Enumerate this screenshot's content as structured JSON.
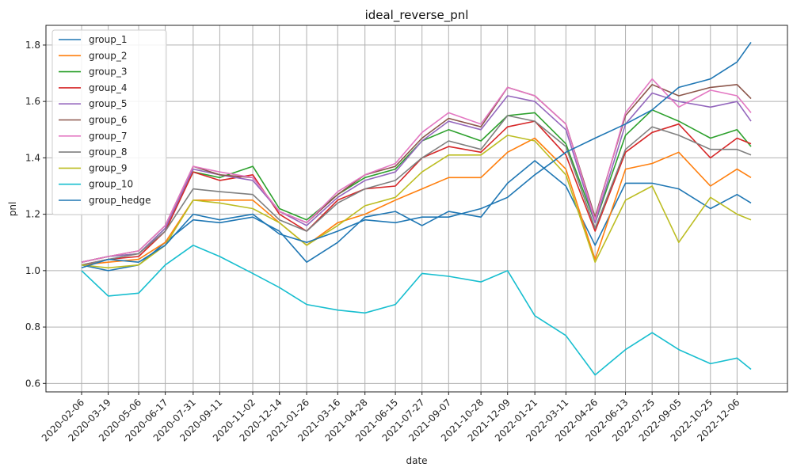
{
  "chart_data": {
    "type": "line",
    "title": "ideal_reverse_pnl",
    "xlabel": "date",
    "ylabel": "pnl",
    "ylim": [
      0.57,
      1.87
    ],
    "yticks": [
      0.6,
      0.8,
      1.0,
      1.2,
      1.4,
      1.6,
      1.8
    ],
    "xticks": [
      "2020-02-06",
      "2020-03-19",
      "2020-05-06",
      "2020-06-17",
      "2020-07-31",
      "2020-09-11",
      "2020-11-02",
      "2020-12-14",
      "2021-01-26",
      "2021-03-16",
      "2021-04-28",
      "2021-06-15",
      "2021-07-27",
      "2021-09-07",
      "2021-10-28",
      "2021-12-09",
      "2022-01-21",
      "2022-03-11",
      "2022-04-26",
      "2022-06-13",
      "2022-07-25",
      "2022-09-05",
      "2022-10-25",
      "2022-12-06"
    ],
    "grid": true,
    "legend": "top-left",
    "x": [
      "2020-02-06",
      "2020-03-19",
      "2020-05-06",
      "2020-06-17",
      "2020-07-31",
      "2020-09-11",
      "2020-11-02",
      "2020-12-14",
      "2021-01-26",
      "2021-03-16",
      "2021-04-28",
      "2021-06-15",
      "2021-07-27",
      "2021-09-07",
      "2021-10-28",
      "2021-12-09",
      "2022-01-21",
      "2022-03-11",
      "2022-04-26",
      "2022-06-13",
      "2022-07-25",
      "2022-09-05",
      "2022-10-25",
      "2022-12-06",
      "2022-12-28"
    ],
    "series": [
      {
        "name": "group_1",
        "color": "#1f77b4",
        "values": [
          1.02,
          1.0,
          1.02,
          1.1,
          1.18,
          1.17,
          1.19,
          1.14,
          1.03,
          1.1,
          1.19,
          1.21,
          1.16,
          1.21,
          1.19,
          1.31,
          1.39,
          1.3,
          1.09,
          1.31,
          1.31,
          1.29,
          1.22,
          1.27,
          1.24
        ]
      },
      {
        "name": "group_2",
        "color": "#ff7f0e",
        "values": [
          1.02,
          1.03,
          1.04,
          1.1,
          1.25,
          1.25,
          1.25,
          1.17,
          1.09,
          1.17,
          1.2,
          1.25,
          1.29,
          1.33,
          1.33,
          1.42,
          1.47,
          1.36,
          1.04,
          1.36,
          1.38,
          1.42,
          1.3,
          1.36,
          1.33
        ]
      },
      {
        "name": "group_3",
        "color": "#2ca02c",
        "values": [
          1.03,
          1.05,
          1.06,
          1.15,
          1.35,
          1.33,
          1.37,
          1.22,
          1.18,
          1.27,
          1.33,
          1.36,
          1.46,
          1.5,
          1.46,
          1.55,
          1.56,
          1.45,
          1.17,
          1.48,
          1.57,
          1.53,
          1.47,
          1.5,
          1.44
        ]
      },
      {
        "name": "group_4",
        "color": "#d62728",
        "values": [
          1.02,
          1.04,
          1.05,
          1.14,
          1.35,
          1.32,
          1.34,
          1.2,
          1.14,
          1.25,
          1.29,
          1.3,
          1.4,
          1.44,
          1.42,
          1.51,
          1.53,
          1.41,
          1.14,
          1.42,
          1.49,
          1.52,
          1.4,
          1.47,
          1.45
        ]
      },
      {
        "name": "group_5",
        "color": "#9467bd",
        "values": [
          1.03,
          1.05,
          1.06,
          1.15,
          1.36,
          1.34,
          1.32,
          1.21,
          1.16,
          1.26,
          1.32,
          1.35,
          1.46,
          1.53,
          1.5,
          1.62,
          1.6,
          1.5,
          1.17,
          1.52,
          1.63,
          1.6,
          1.58,
          1.6,
          1.53
        ]
      },
      {
        "name": "group_6",
        "color": "#8c564b",
        "values": [
          1.03,
          1.05,
          1.07,
          1.16,
          1.37,
          1.34,
          1.33,
          1.21,
          1.17,
          1.27,
          1.34,
          1.37,
          1.47,
          1.54,
          1.51,
          1.65,
          1.62,
          1.52,
          1.19,
          1.55,
          1.66,
          1.62,
          1.65,
          1.66,
          1.61
        ]
      },
      {
        "name": "group_7",
        "color": "#e377c2",
        "values": [
          1.03,
          1.05,
          1.07,
          1.16,
          1.37,
          1.35,
          1.33,
          1.21,
          1.17,
          1.28,
          1.34,
          1.38,
          1.49,
          1.56,
          1.52,
          1.65,
          1.62,
          1.52,
          1.18,
          1.56,
          1.68,
          1.58,
          1.64,
          1.62,
          1.56
        ]
      },
      {
        "name": "group_8",
        "color": "#7f7f7f",
        "values": [
          1.02,
          1.04,
          1.06,
          1.14,
          1.29,
          1.28,
          1.27,
          1.18,
          1.14,
          1.24,
          1.29,
          1.32,
          1.4,
          1.46,
          1.43,
          1.55,
          1.53,
          1.44,
          1.15,
          1.43,
          1.51,
          1.48,
          1.43,
          1.43,
          1.41
        ]
      },
      {
        "name": "group_9",
        "color": "#bcbd22",
        "values": [
          1.02,
          1.01,
          1.02,
          1.09,
          1.25,
          1.24,
          1.22,
          1.17,
          1.09,
          1.16,
          1.23,
          1.26,
          1.35,
          1.41,
          1.41,
          1.48,
          1.46,
          1.34,
          1.03,
          1.25,
          1.3,
          1.1,
          1.26,
          1.2,
          1.18
        ]
      },
      {
        "name": "group_10",
        "color": "#17becf",
        "values": [
          1.0,
          0.91,
          0.92,
          1.02,
          1.09,
          1.05,
          0.99,
          0.94,
          0.88,
          0.86,
          0.85,
          0.88,
          0.99,
          0.98,
          0.96,
          1.0,
          0.84,
          0.77,
          0.63,
          0.72,
          0.78,
          0.72,
          0.67,
          0.69,
          0.65
        ]
      },
      {
        "name": "group_hedge",
        "color": "#1f77b4",
        "values": [
          1.01,
          1.04,
          1.03,
          1.09,
          1.2,
          1.18,
          1.2,
          1.13,
          1.1,
          1.14,
          1.18,
          1.17,
          1.19,
          1.19,
          1.22,
          1.26,
          1.34,
          1.42,
          1.47,
          1.52,
          1.57,
          1.65,
          1.68,
          1.74,
          1.81
        ]
      }
    ]
  }
}
